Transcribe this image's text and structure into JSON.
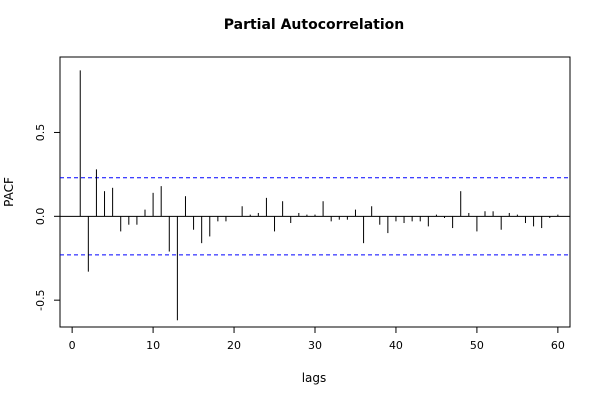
{
  "chart_data": {
    "type": "bar",
    "title": "Partial Autocorrelation",
    "xlabel": "lags",
    "ylabel": "PACF",
    "xlim": [
      -1.5,
      61.5
    ],
    "ylim": [
      -0.66,
      0.95
    ],
    "xticks": [
      0,
      10,
      20,
      30,
      40,
      50,
      60
    ],
    "yticks": [
      -0.5,
      0.0,
      0.5
    ],
    "ytick_labels": [
      "-0.5",
      "0.0",
      "0.5"
    ],
    "zero_line": 0,
    "confidence_bounds": [
      0.23,
      -0.23
    ],
    "grid": false,
    "legend": "none",
    "colors": {
      "bars": "#000000",
      "bounds": "#0000ff"
    },
    "x": [
      1,
      2,
      3,
      4,
      5,
      6,
      7,
      8,
      9,
      10,
      11,
      12,
      13,
      14,
      15,
      16,
      17,
      18,
      19,
      20,
      21,
      22,
      23,
      24,
      25,
      26,
      27,
      28,
      29,
      30,
      31,
      32,
      33,
      34,
      35,
      36,
      37,
      38,
      39,
      40,
      41,
      42,
      43,
      44,
      45,
      46,
      47,
      48,
      49,
      50,
      51,
      52,
      53,
      54,
      55,
      56,
      57,
      58,
      59,
      60
    ],
    "values": [
      0.87,
      -0.33,
      0.28,
      0.15,
      0.17,
      -0.09,
      -0.05,
      -0.05,
      0.04,
      0.14,
      0.18,
      -0.21,
      -0.62,
      0.12,
      -0.08,
      -0.16,
      -0.12,
      -0.03,
      -0.03,
      0.0,
      0.06,
      0.01,
      0.02,
      0.11,
      -0.09,
      0.09,
      -0.04,
      0.02,
      0.01,
      0.01,
      0.09,
      -0.03,
      -0.02,
      -0.02,
      0.04,
      -0.16,
      0.06,
      -0.05,
      -0.1,
      -0.03,
      -0.04,
      -0.03,
      -0.03,
      -0.06,
      0.01,
      -0.01,
      -0.07,
      0.15,
      0.02,
      -0.09,
      0.03,
      0.03,
      -0.08,
      0.02,
      0.01,
      -0.04,
      -0.06,
      -0.07,
      -0.01,
      0.01
    ]
  }
}
